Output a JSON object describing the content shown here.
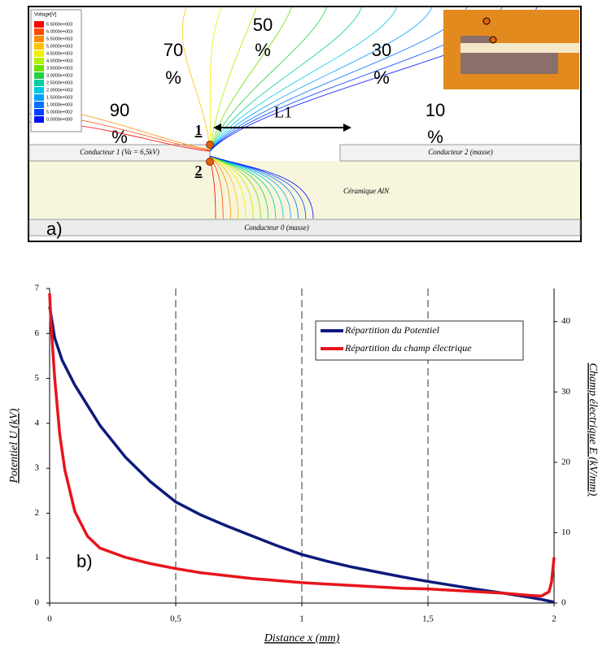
{
  "panel_a": {
    "legend_title": "Voltage[V]",
    "legend_values": [
      "6.5000e+003",
      "6.0000e+003",
      "5.5000e+003",
      "5.0000e+003",
      "4.5000e+003",
      "4.0000e+003",
      "3.5000e+003",
      "3.0000e+003",
      "2.5000e+003",
      "2.0000e+003",
      "1.5000e+003",
      "1.0000e+003",
      "5.0000e+002",
      "0.0000e+000"
    ],
    "contour_labels": [
      "90",
      "70",
      "50",
      "30",
      "10"
    ],
    "percent_sign": "%",
    "length_label": "L1",
    "point_1": "1",
    "point_2": "2",
    "conductor_1": "Conducteur 1 (Va = 6,5kV)",
    "conductor_2": "Conducteur 2 (masse)",
    "ceramic": "Céramique AlN",
    "conductor_0": "Conducteur 0 (masse)",
    "panel_label": "a)"
  },
  "chart_data": {
    "type": "line",
    "panel_label": "b)",
    "x_label": "Distance x (mm)",
    "y_label": "Potentiel U (kV)",
    "y2_label": "Champ électrique E (kV/mm)",
    "xlim": [
      0,
      2
    ],
    "xticks": [
      0,
      {
        "value": 0.5,
        "label": "0,5"
      },
      1,
      {
        "value": 1.5,
        "label": "1,5"
      },
      2
    ],
    "ylim": [
      0,
      7
    ],
    "yticks": [
      0,
      1,
      2,
      3,
      4,
      5,
      6,
      7
    ],
    "y2lim": [
      0,
      44.7
    ],
    "y2ticks": [
      0,
      10,
      20,
      30,
      40
    ],
    "grid": "x",
    "legend": "upper right",
    "series": [
      {
        "name": "Répartition du Potentiel",
        "color": "#0d1a7a",
        "x": [
          0,
          0.02,
          0.05,
          0.1,
          0.2,
          0.3,
          0.4,
          0.5,
          0.6,
          0.7,
          0.8,
          0.9,
          1,
          1.1,
          1.2,
          1.3,
          1.4,
          1.5,
          1.6,
          1.7,
          1.8,
          1.9,
          1.95,
          2
        ],
        "values": [
          6.6,
          5.9,
          5.4,
          4.85,
          3.95,
          3.25,
          2.7,
          2.25,
          1.96,
          1.72,
          1.5,
          1.28,
          1.08,
          0.93,
          0.8,
          0.69,
          0.58,
          0.48,
          0.39,
          0.3,
          0.22,
          0.13,
          0.08,
          0.02
        ]
      },
      {
        "name": "Répartition du champ électrique",
        "color": "#e8141c",
        "axis": "y2",
        "x": [
          0,
          0.005,
          0.02,
          0.04,
          0.06,
          0.1,
          0.15,
          0.2,
          0.3,
          0.4,
          0.5,
          0.6,
          0.7,
          0.8,
          0.9,
          1,
          1.2,
          1.4,
          1.5,
          1.6,
          1.8,
          1.9,
          1.95,
          1.98,
          1.99,
          2
        ],
        "values": [
          44,
          40,
          32,
          24,
          19,
          13,
          9.5,
          7.8,
          6.5,
          5.6,
          4.9,
          4.3,
          3.9,
          3.5,
          3.2,
          2.9,
          2.5,
          2.1,
          2.0,
          1.8,
          1.4,
          1.1,
          1.0,
          1.6,
          3,
          6.5
        ]
      }
    ]
  }
}
